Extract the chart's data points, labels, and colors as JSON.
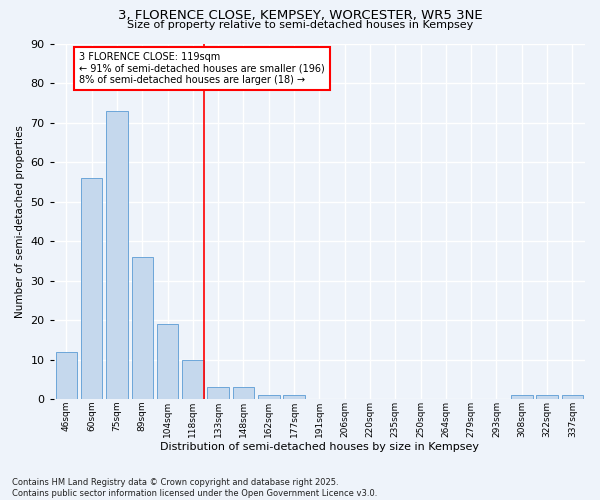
{
  "title": "3, FLORENCE CLOSE, KEMPSEY, WORCESTER, WR5 3NE",
  "subtitle": "Size of property relative to semi-detached houses in Kempsey",
  "xlabel": "Distribution of semi-detached houses by size in Kempsey",
  "ylabel": "Number of semi-detached properties",
  "bar_color": "#c5d8ed",
  "bar_edge_color": "#5b9bd5",
  "background_color": "#eef3fa",
  "grid_color": "#ffffff",
  "categories": [
    "46sqm",
    "60sqm",
    "75sqm",
    "89sqm",
    "104sqm",
    "118sqm",
    "133sqm",
    "148sqm",
    "162sqm",
    "177sqm",
    "191sqm",
    "206sqm",
    "220sqm",
    "235sqm",
    "250sqm",
    "264sqm",
    "279sqm",
    "293sqm",
    "308sqm",
    "322sqm",
    "337sqm"
  ],
  "values": [
    12,
    56,
    73,
    36,
    19,
    10,
    3,
    3,
    1,
    1,
    0,
    0,
    0,
    0,
    0,
    0,
    0,
    0,
    1,
    1,
    1
  ],
  "property_label": "3 FLORENCE CLOSE: 119sqm",
  "annotation_line1": "← 91% of semi-detached houses are smaller (196)",
  "annotation_line2": "8% of semi-detached houses are larger (18) →",
  "marker_bin_index": 5,
  "ylim": [
    0,
    90
  ],
  "yticks": [
    0,
    10,
    20,
    30,
    40,
    50,
    60,
    70,
    80,
    90
  ],
  "footnote1": "Contains HM Land Registry data © Crown copyright and database right 2025.",
  "footnote2": "Contains public sector information licensed under the Open Government Licence v3.0."
}
